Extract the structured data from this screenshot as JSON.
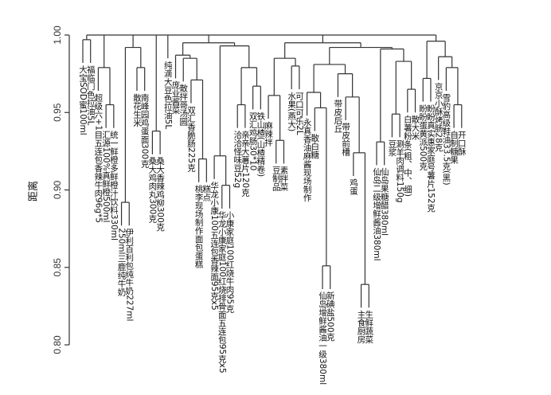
{
  "chart_data": {
    "type": "dendrogram",
    "ylabel": "距离",
    "ylim": [
      0.8,
      1.0
    ],
    "y_ticks": [
      "0.80",
      "0.85",
      "0.90",
      "0.95",
      "1.00"
    ],
    "y_tick_values": [
      0.8,
      0.85,
      0.9,
      0.95,
      1.0
    ],
    "leaves": [
      "大宝SOD蜜100ml",
      "福临门色拉油5L",
      "超级六+1目五连包香辣牛肉96g*5",
      "汇源100%真鲜橙500ml",
      "统一鲜橙多鲜橙汁饮料330ml",
      "250ml三鹿纯牛奶",
      "伊利百利包纯牛奶227ml",
      "散花生米",
      "南峰园鸡蛋面300克",
      "桑大鸡肉丸300克",
      "桑大香辣鸡柳300克",
      "纯滴大豆色拉油5L",
      "庞业酱菜",
      "散拌哥汤圆",
      "双汇香脆肠225克",
      "桃李现场制作面包蛋糕",
      "糕点",
      "华龙小康100五连包香辣面95克x5",
      "华龙小康家庭100红烧排骨面五连包95克x5",
      "小康家庭100红烧牛肉95克",
      "洽洽怪味豆52g",
      "亲亲大薯片120克",
      "双汇鸡肠30*10",
      "铁山楂(山楂精卷)",
      "麻辣拌",
      "豆制品",
      "素拌菜",
      "水果(燕大)",
      "可口可乐2L",
      "永真香油麻酱现场制作",
      "散白糖",
      "仙岛增鲜酱油一级380ml",
      "新碘盐500克",
      "带皮后丘",
      "带皮前槽",
      "鸡蛋",
      "主食厨房",
      "生鲜蔬菜",
      "仙岛二级增鲜酱油380ml",
      "仙岛果糖醋380ml",
      "豆浆",
      "涮羊肉调料150g",
      "白薯粉条(粗、中、细)",
      "散大米",
      "盼盼蛋黄派500克",
      "盼盼真实惠家庭号薯片152克",
      "京京小酥烤肠28克",
      "雪豹高级鞋油33.5克(黑)",
      "自制糖果",
      "开口酥"
    ],
    "hang": 0.015,
    "tree": {
      "h": 1.0,
      "c": [
        {
          "h": 0.997,
          "c": [
            0,
            1
          ]
        },
        {
          "h": 0.979,
          "c": [
            2,
            {
              "h": 0.955,
              "c": [
                3,
                4
              ]
            }
          ]
        },
        {
          "h": 0.992,
          "c": [
            {
              "h": 0.892,
              "c": [
                5,
                6
              ]
            },
            {
              "h": 0.979,
              "c": [
                7,
                8
              ]
            }
          ]
        },
        {
          "h": 0.938,
          "c": [
            9,
            10
          ]
        },
        11,
        {
          "h": 0.995,
          "c": [
            {
              "h": 0.987,
              "c": [
                12,
                {
                  "h": 0.985,
                  "c": [
                    13,
                    {
                      "h": 0.971,
                      "c": [
                        14,
                        {
                          "h": 0.92,
                          "c": [
                            15,
                            16
                          ]
                        }
                      ]
                    }
                  ]
                }
              ]
            },
            {
              "h": 0.993,
              "c": [
                {
                  "h": 0.922,
                  "c": [
                    17,
                    {
                      "h": 0.903,
                      "c": [
                        18,
                        19
                      ]
                    }
                  ]
                },
                {
                  "h": 0.979,
                  "c": [
                    {
                      "h": 0.955,
                      "c": [
                        20,
                        21
                      ]
                    },
                    {
                      "h": 0.967,
                      "c": [
                        22,
                        23
                      ]
                    }
                  ]
                }
              ]
            }
          ]
        },
        {
          "h": 0.995,
          "c": [
            {
              "h": 0.985,
              "c": [
                {
                  "h": 0.961,
                  "c": [
                    24,
                    {
                      "h": 0.932,
                      "c": [
                        25,
                        26
                      ]
                    }
                  ]
                },
                {
                  "h": 0.98,
                  "c": [
                    27,
                    28
                  ]
                }
              ]
            },
            {
              "h": 0.992,
              "c": [
                {
                  "h": 0.981,
                  "c": [
                    {
                      "h": 0.963,
                      "c": [
                        29,
                        {
                          "h": 0.953,
                          "c": [
                            30,
                            {
                              "h": 0.851,
                              "c": [
                                31,
                                32
                              ]
                            }
                          ]
                        }
                      ]
                    },
                    {
                      "h": 0.975,
                      "c": [
                        33,
                        {
                          "h": 0.96,
                          "c": [
                            34,
                            {
                              "h": 0.924,
                              "c": [
                                35,
                                {
                                  "h": 0.839,
                                  "c": [
                                    36,
                                    37
                                  ]
                                }
                              ]
                            }
                          ]
                        }
                      ]
                    }
                  ]
                },
                {
                  "h": 0.991,
                  "c": [
                    {
                      "h": 0.931,
                      "c": [
                        38,
                        39
                      ]
                    },
                    {
                      "h": 0.983,
                      "c": [
                        {
                          "h": 0.949,
                          "c": [
                            40,
                            41
                          ]
                        },
                        {
                          "h": 0.965,
                          "c": [
                            42,
                            43
                          ]
                        }
                      ]
                    }
                  ]
                }
              ]
            }
          ]
        },
        {
          "h": 0.996,
          "c": [
            {
              "h": 0.972,
              "c": [
                44,
                45
              ]
            },
            {
              "h": 0.986,
              "c": [
                46,
                {
                  "h": 0.979,
                  "c": [
                    47,
                    {
                      "h": 0.955,
                      "c": [
                        48,
                        49
                      ]
                    }
                  ]
                }
              ]
            }
          ]
        }
      ]
    }
  }
}
